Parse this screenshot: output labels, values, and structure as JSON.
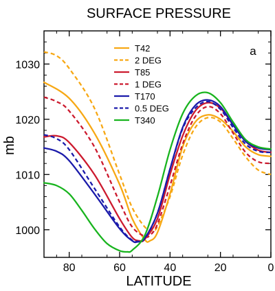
{
  "chart_data": {
    "type": "line",
    "title": "SURFACE PRESSURE",
    "panel_label": "a",
    "xlabel": "LATITUDE",
    "ylabel": "mb",
    "xlim": [
      90,
      0
    ],
    "ylim": [
      995,
      1036
    ],
    "x_ticks": [
      80,
      60,
      40,
      20,
      0
    ],
    "y_ticks": [
      1000,
      1010,
      1020,
      1030
    ],
    "legend_position": "top",
    "series": [
      {
        "name": "T42",
        "color": "#f7a814",
        "dash": "solid",
        "x": [
          90,
          80,
          70,
          60,
          55,
          50,
          48,
          45,
          40,
          35,
          30,
          25,
          20,
          15,
          10,
          5,
          0
        ],
        "y": [
          1026.7,
          1023.8,
          1017.5,
          1008.2,
          1002.0,
          998.2,
          998.0,
          999.5,
          1006.5,
          1015.0,
          1019.5,
          1020.8,
          1020.0,
          1017.8,
          1015.0,
          1013.6,
          1013.3
        ]
      },
      {
        "name": "2 DEG",
        "color": "#f7a814",
        "dash": "dashed",
        "x": [
          90,
          85,
          80,
          70,
          60,
          55,
          50,
          47,
          45,
          40,
          35,
          30,
          25,
          20,
          15,
          10,
          5,
          0
        ],
        "y": [
          1032.2,
          1031.5,
          1029.2,
          1022.0,
          1010.0,
          1004.0,
          1000.5,
          999.8,
          1000.6,
          1006.0,
          1013.5,
          1018.5,
          1020.3,
          1019.5,
          1016.5,
          1013.2,
          1010.8,
          1010.0
        ]
      },
      {
        "name": "T85",
        "color": "#cc1a2e",
        "dash": "solid",
        "x": [
          90,
          85,
          80,
          70,
          60,
          55,
          52,
          50,
          45,
          40,
          35,
          30,
          25,
          20,
          15,
          10,
          5,
          0
        ],
        "y": [
          1016.8,
          1017.0,
          1015.8,
          1010.0,
          1002.0,
          998.6,
          998.0,
          998.3,
          1002.0,
          1010.0,
          1017.0,
          1021.5,
          1023.0,
          1022.0,
          1019.0,
          1016.0,
          1014.4,
          1014.0
        ]
      },
      {
        "name": "1 DEG",
        "color": "#cc1a2e",
        "dash": "dashed",
        "x": [
          90,
          85,
          80,
          70,
          60,
          55,
          50,
          48,
          45,
          40,
          35,
          30,
          25,
          20,
          15,
          10,
          5,
          0
        ],
        "y": [
          1024.0,
          1023.2,
          1021.5,
          1015.0,
          1005.0,
          1000.5,
          998.8,
          999.0,
          1001.0,
          1008.0,
          1015.5,
          1020.5,
          1022.3,
          1021.0,
          1017.5,
          1014.0,
          1012.3,
          1012.0
        ]
      },
      {
        "name": "T170",
        "color": "#1a1aaa",
        "dash": "solid",
        "x": [
          90,
          85,
          80,
          70,
          60,
          55,
          53,
          50,
          45,
          40,
          35,
          30,
          25,
          20,
          15,
          10,
          5,
          0
        ],
        "y": [
          1014.8,
          1014.2,
          1012.5,
          1006.5,
          1000.2,
          998.0,
          997.8,
          998.5,
          1003.0,
          1011.0,
          1018.5,
          1022.5,
          1023.5,
          1022.3,
          1019.0,
          1016.0,
          1014.8,
          1014.5
        ]
      },
      {
        "name": "0.5 DEG",
        "color": "#1a1aaa",
        "dash": "dashed",
        "x": [
          90,
          85,
          80,
          70,
          60,
          55,
          53,
          50,
          45,
          40,
          35,
          30,
          25,
          20,
          15,
          10,
          5,
          0
        ],
        "y": [
          1017.2,
          1016.5,
          1014.5,
          1007.5,
          1000.5,
          998.1,
          997.9,
          998.4,
          1003.0,
          1011.0,
          1018.3,
          1022.0,
          1023.2,
          1021.8,
          1018.5,
          1015.5,
          1014.2,
          1014.0
        ]
      },
      {
        "name": "T340",
        "color": "#18b41e",
        "dash": "solid",
        "x": [
          90,
          85,
          80,
          75,
          70,
          65,
          60,
          57,
          55,
          50,
          45,
          40,
          35,
          30,
          25,
          20,
          15,
          10,
          5,
          0
        ],
        "y": [
          1008.5,
          1008.0,
          1006.5,
          1003.5,
          1000.2,
          997.5,
          996.2,
          996.0,
          996.3,
          999.0,
          1006.0,
          1014.5,
          1021.0,
          1024.2,
          1024.8,
          1023.0,
          1019.5,
          1016.3,
          1015.0,
          1014.6
        ]
      }
    ]
  }
}
